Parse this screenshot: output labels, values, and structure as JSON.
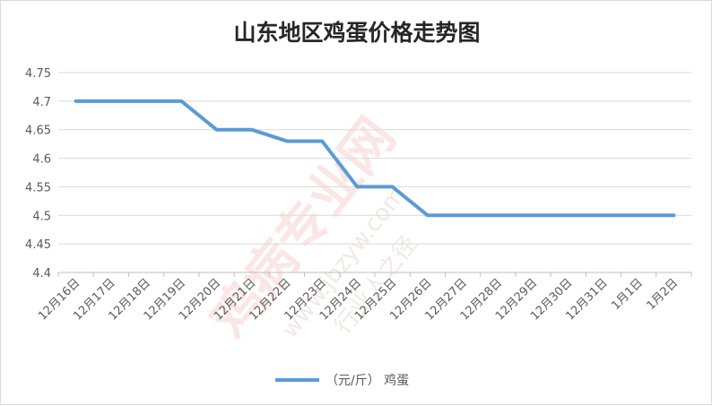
{
  "chart_data": {
    "type": "line",
    "title": "山东地区鸡蛋价格走势图",
    "categories": [
      "12月16日",
      "12月17日",
      "12月18日",
      "12月19日",
      "12月20日",
      "12月21日",
      "12月22日",
      "12月23日",
      "12月24日",
      "12月25日",
      "12月26日",
      "12月27日",
      "12月28日",
      "12月29日",
      "12月30日",
      "12月31日",
      "1月1日",
      "1月2日"
    ],
    "series": [
      {
        "name": "（元/斤） 鸡蛋",
        "color": "#5b9bd5",
        "values": [
          4.7,
          4.7,
          4.7,
          4.7,
          4.65,
          4.65,
          4.63,
          4.63,
          4.55,
          4.55,
          4.5,
          4.5,
          4.5,
          4.5,
          4.5,
          4.5,
          4.5,
          4.5
        ]
      }
    ],
    "ylim": [
      4.4,
      4.75
    ],
    "y_ticks": [
      "4.4",
      "4.45",
      "4.5",
      "4.55",
      "4.6",
      "4.65",
      "4.7",
      "4.75"
    ],
    "grid": true,
    "legend_position": "bottom"
  },
  "watermark": {
    "main": "鸡病专业网",
    "url": "www.jbzyw.com",
    "sub": "行业人之径"
  }
}
